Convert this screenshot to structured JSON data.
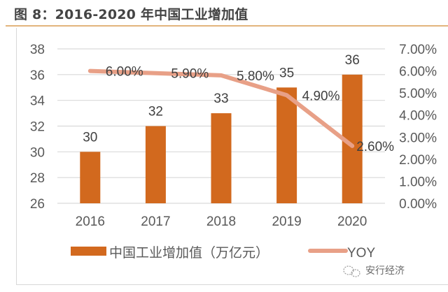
{
  "title": "图 8：2016-2020 年中国工业增加值",
  "watermark": "安行经济",
  "chart_data": {
    "type": "bar",
    "title": "图 8：2016-2020 年中国工业增加值",
    "categories": [
      "2016",
      "2017",
      "2018",
      "2019",
      "2020"
    ],
    "series": [
      {
        "name": "中国工业增加值（万亿元）",
        "type": "bar",
        "axis": "left",
        "color": "#d2691e",
        "values": [
          30,
          32,
          33,
          35,
          36
        ],
        "labels": [
          "30",
          "32",
          "33",
          "35",
          "36"
        ]
      },
      {
        "name": "YOY",
        "type": "line",
        "axis": "right",
        "color": "#e8a087",
        "values": [
          6.0,
          5.9,
          5.8,
          4.9,
          2.6
        ],
        "labels": [
          "6.00%",
          "5.90%",
          "5.80%",
          "4.90%",
          "2.60%"
        ]
      }
    ],
    "y_left": {
      "range": [
        26,
        38
      ],
      "ticks": [
        "26",
        "28",
        "30",
        "32",
        "34",
        "36",
        "38"
      ]
    },
    "y_right": {
      "range": [
        0,
        7
      ],
      "ticks": [
        "0.00%",
        "1.00%",
        "2.00%",
        "3.00%",
        "4.00%",
        "5.00%",
        "6.00%",
        "7.00%"
      ]
    },
    "xlabel": "",
    "ylabel": "",
    "grid": true,
    "legend": "bottom"
  }
}
